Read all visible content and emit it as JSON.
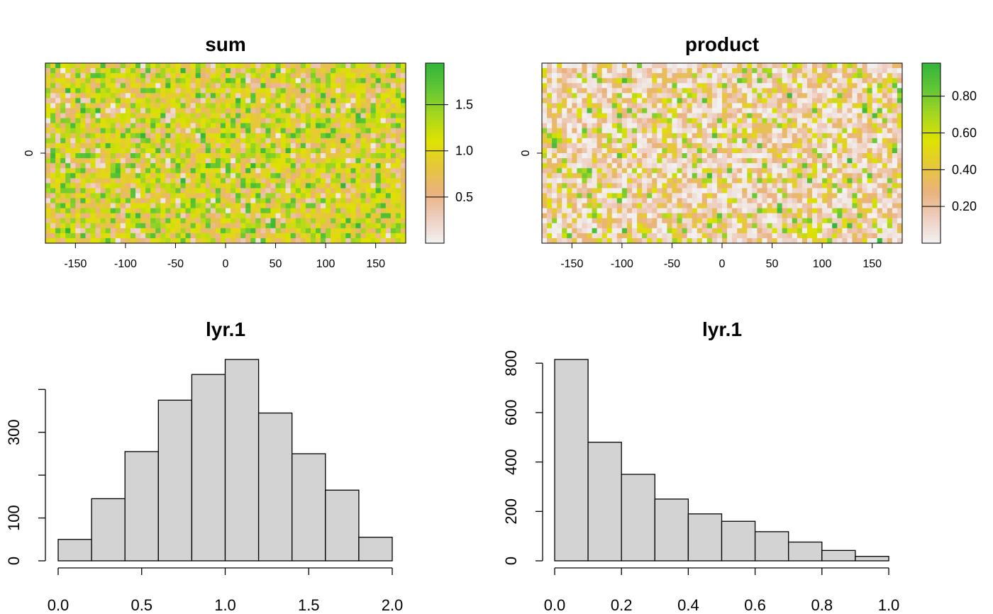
{
  "colors": {
    "ramp": [
      "#F2F2F2",
      "#EECEC0",
      "#EAB27C",
      "#E6C83A",
      "#DEE200",
      "#A6D71F",
      "#61C734",
      "#33B43A"
    ],
    "bar_fill": "#D3D3D3",
    "stroke": "#000000"
  },
  "chart_data": [
    {
      "type": "heatmap",
      "title": "sum",
      "x_ticks": [
        "-150",
        "-100",
        "-50",
        "0",
        "50",
        "100",
        "150"
      ],
      "x_tick_values": [
        -150,
        -100,
        -50,
        0,
        50,
        100,
        150
      ],
      "xlim": [
        -180,
        180
      ],
      "y_ticks": [
        "0"
      ],
      "y_tick_values": [
        0
      ],
      "ylim": [
        -90,
        90
      ],
      "grid": {
        "rows": 36,
        "cols": 72
      },
      "value_range": [
        0,
        2
      ],
      "distribution": "sum of two uniform(0,1) rasters",
      "legend": {
        "position": "right",
        "range": [
          0.0,
          1.95
        ],
        "ticks": [
          "0.5",
          "1.0",
          "1.5"
        ],
        "tick_values": [
          0.5,
          1.0,
          1.5
        ]
      }
    },
    {
      "type": "heatmap",
      "title": "product",
      "x_ticks": [
        "-150",
        "-100",
        "-50",
        "0",
        "50",
        "100",
        "150"
      ],
      "x_tick_values": [
        -150,
        -100,
        -50,
        0,
        50,
        100,
        150
      ],
      "xlim": [
        -180,
        180
      ],
      "y_ticks": [
        "0"
      ],
      "y_tick_values": [
        0
      ],
      "ylim": [
        -90,
        90
      ],
      "grid": {
        "rows": 36,
        "cols": 72
      },
      "value_range": [
        0,
        1
      ],
      "distribution": "product of two uniform(0,1) rasters",
      "legend": {
        "position": "right",
        "range": [
          0.0,
          0.98
        ],
        "ticks": [
          "0.20",
          "0.40",
          "0.60",
          "0.80"
        ],
        "tick_values": [
          0.2,
          0.4,
          0.6,
          0.8
        ]
      }
    },
    {
      "type": "bar",
      "subtype": "histogram",
      "title": "lyr.1",
      "bin_edges": [
        0.0,
        0.2,
        0.4,
        0.6,
        0.8,
        1.0,
        1.2,
        1.4,
        1.6,
        1.8,
        2.0
      ],
      "values": [
        50,
        145,
        255,
        375,
        435,
        470,
        345,
        250,
        165,
        55
      ],
      "x_ticks": [
        "0.0",
        "0.5",
        "1.0",
        "1.5",
        "2.0"
      ],
      "x_tick_values": [
        0.0,
        0.5,
        1.0,
        1.5,
        2.0
      ],
      "y_ticks": [
        "0",
        "100",
        "300"
      ],
      "y_tick_values": [
        0,
        100,
        200,
        300,
        400
      ],
      "ylim": [
        0,
        470
      ]
    },
    {
      "type": "bar",
      "subtype": "histogram",
      "title": "lyr.1",
      "bin_edges": [
        0.0,
        0.1,
        0.2,
        0.3,
        0.4,
        0.5,
        0.6,
        0.7,
        0.8,
        0.9,
        1.0
      ],
      "values": [
        815,
        480,
        350,
        250,
        190,
        160,
        118,
        76,
        42,
        18
      ],
      "x_ticks": [
        "0.0",
        "0.2",
        "0.4",
        "0.6",
        "0.8",
        "1.0"
      ],
      "x_tick_values": [
        0.0,
        0.2,
        0.4,
        0.6,
        0.8,
        1.0
      ],
      "y_ticks": [
        "0",
        "200",
        "400",
        "600",
        "800"
      ],
      "y_tick_values": [
        0,
        200,
        400,
        600,
        800
      ],
      "ylim": [
        0,
        815
      ]
    }
  ]
}
